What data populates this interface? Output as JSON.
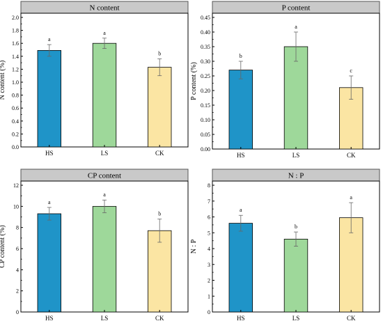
{
  "colors": {
    "HS": "#1f94c8",
    "LS": "#9ed89a",
    "CK": "#fbe5a3",
    "title_bg": "#c9c9c9"
  },
  "chart_data": [
    {
      "type": "bar",
      "title": "N content",
      "ylabel": "N content (%)",
      "categories": [
        "HS",
        "LS",
        "CK"
      ],
      "values": [
        1.49,
        1.6,
        1.23
      ],
      "errors": [
        0.09,
        0.08,
        0.13
      ],
      "letters": [
        "a",
        "a",
        "b"
      ],
      "ylim": [
        0,
        2.0
      ],
      "yticks": [
        "0.0",
        "0.2",
        "0.4",
        "0.6",
        "0.8",
        "1.0",
        "1.2",
        "1.4",
        "1.6",
        "1.8",
        "2.0"
      ]
    },
    {
      "type": "bar",
      "title": "P content",
      "ylabel": "P content (%)",
      "categories": [
        "HS",
        "LS",
        "CK"
      ],
      "values": [
        0.27,
        0.35,
        0.21
      ],
      "errors": [
        0.03,
        0.05,
        0.04
      ],
      "letters": [
        "b",
        "a",
        "c"
      ],
      "ylim": [
        0,
        0.45
      ],
      "yticks": [
        "0.00",
        "0.05",
        "0.10",
        "0.15",
        "0.20",
        "0.25",
        "0.30",
        "0.35",
        "0.40",
        "0.45"
      ]
    },
    {
      "type": "bar",
      "title": "CP content",
      "ylabel": "CP content (%)",
      "categories": [
        "HS",
        "LS",
        "CK"
      ],
      "values": [
        9.3,
        10.0,
        7.7
      ],
      "errors": [
        0.6,
        0.6,
        1.1
      ],
      "letters": [
        "a",
        "a",
        "b"
      ],
      "ylim": [
        0,
        12
      ],
      "yticks": [
        "0",
        "2",
        "4",
        "6",
        "8",
        "10",
        "12"
      ]
    },
    {
      "type": "bar",
      "title": "N : P",
      "ylabel": "N : P",
      "categories": [
        "HS",
        "LS",
        "CK"
      ],
      "values": [
        5.6,
        4.6,
        5.95
      ],
      "errors": [
        0.5,
        0.45,
        0.95
      ],
      "letters": [
        "a",
        "b",
        "a"
      ],
      "ylim": [
        0,
        8
      ],
      "yticks": [
        "0",
        "1",
        "2",
        "3",
        "4",
        "5",
        "6",
        "7",
        "8"
      ]
    }
  ]
}
